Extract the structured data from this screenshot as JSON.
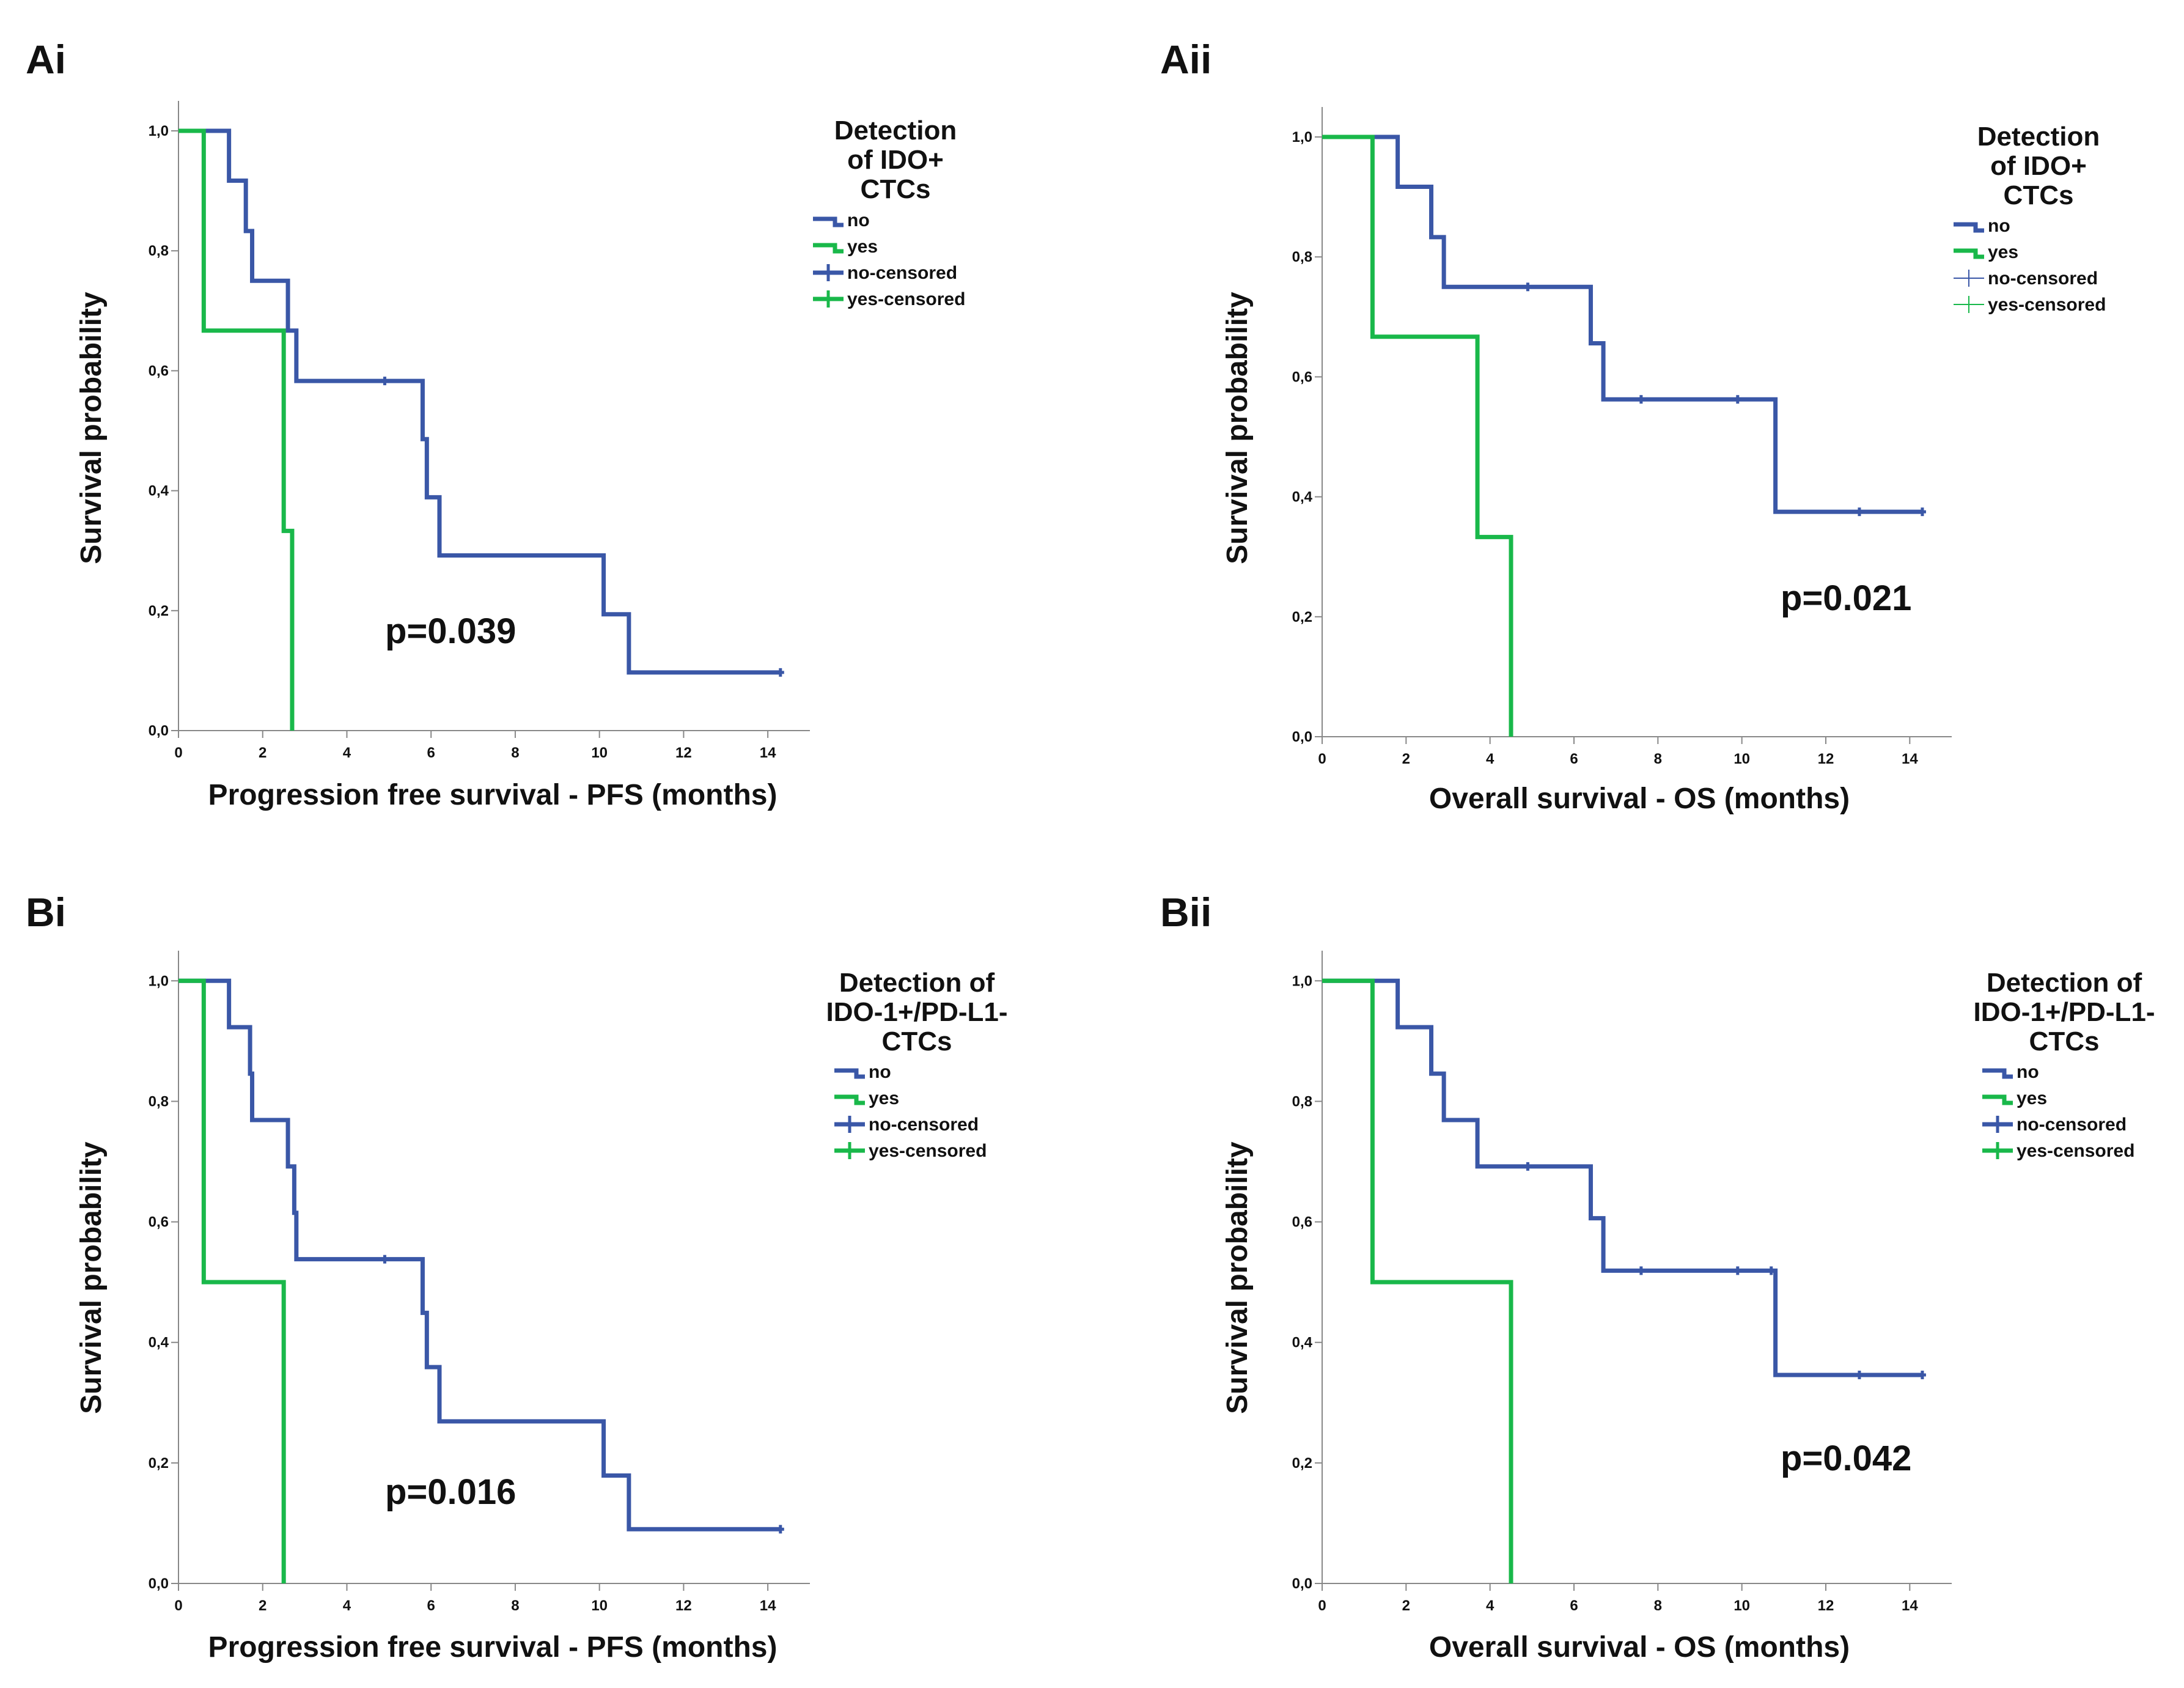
{
  "colors": {
    "no": "#3a57a7",
    "yes": "#19b84a",
    "axis": "#888888",
    "text": "#111111"
  },
  "chart_data": [
    {
      "type": "line",
      "subtype": "kaplan-meier",
      "panel_label": "Ai",
      "xlabel": "Progression free survival - PFS (months)",
      "ylabel": "Survival probability",
      "xlim": [
        0,
        15
      ],
      "ylim": [
        0,
        1.05
      ],
      "xticks": [
        0,
        2,
        4,
        6,
        8,
        10,
        12,
        14
      ],
      "yticks": [
        0,
        0.2,
        0.4,
        0.6,
        0.8,
        1.0
      ],
      "ytick_labels": [
        "0,0",
        "0,2",
        "0,4",
        "0,6",
        "0,8",
        "1,0"
      ],
      "legend_title": [
        "Detection",
        "of IDO+",
        "CTCs"
      ],
      "legend_style": "thick",
      "legend": [
        "no",
        "yes",
        "no-censored",
        "yes-censored"
      ],
      "pvalue": "p=0.039",
      "series": [
        {
          "name": "no",
          "color_key": "no",
          "x": [
            0,
            1.2,
            1.6,
            1.75,
            2.6,
            2.8,
            5.8,
            5.9,
            6.2,
            10.1,
            10.7,
            14.3
          ],
          "y": [
            1.0,
            0.917,
            0.833,
            0.75,
            0.667,
            0.583,
            0.486,
            0.389,
            0.292,
            0.194,
            0.097,
            0.097
          ],
          "censored": [
            [
              4.9,
              0.583
            ],
            [
              14.3,
              0.097
            ]
          ]
        },
        {
          "name": "yes",
          "color_key": "yes",
          "x": [
            0,
            0.6,
            2.5,
            2.7
          ],
          "y": [
            1.0,
            0.667,
            0.333,
            0.0
          ],
          "censored": []
        }
      ]
    },
    {
      "type": "line",
      "subtype": "kaplan-meier",
      "panel_label": "Aii",
      "xlabel": "Overall survival - OS (months)",
      "ylabel": "Survival probability",
      "xlim": [
        0,
        15
      ],
      "ylim": [
        0,
        1.05
      ],
      "xticks": [
        0,
        2,
        4,
        6,
        8,
        10,
        12,
        14
      ],
      "yticks": [
        0,
        0.2,
        0.4,
        0.6,
        0.8,
        1.0
      ],
      "ytick_labels": [
        "0,0",
        "0,2",
        "0,4",
        "0,6",
        "0,8",
        "1,0"
      ],
      "legend_title": [
        "Detection",
        "of IDO+",
        "CTCs"
      ],
      "legend_style": "thin",
      "legend": [
        "no",
        "yes",
        "no-censored",
        "yes-censored"
      ],
      "pvalue": "p=0.021",
      "series": [
        {
          "name": "no",
          "color_key": "no",
          "x": [
            0,
            1.8,
            2.6,
            2.9,
            6.4,
            6.7,
            10.8,
            14.3
          ],
          "y": [
            1.0,
            0.917,
            0.833,
            0.75,
            0.656,
            0.5625,
            0.375,
            0.375
          ],
          "censored": [
            [
              4.9,
              0.75
            ],
            [
              7.6,
              0.5625
            ],
            [
              9.9,
              0.5625
            ],
            [
              12.8,
              0.375
            ],
            [
              14.3,
              0.375
            ]
          ]
        },
        {
          "name": "yes",
          "color_key": "yes",
          "x": [
            0,
            1.2,
            3.7,
            4.5
          ],
          "y": [
            1.0,
            0.667,
            0.333,
            0.0
          ],
          "censored": []
        }
      ]
    },
    {
      "type": "line",
      "subtype": "kaplan-meier",
      "panel_label": "Bi",
      "xlabel": "Progression free survival - PFS (months)",
      "ylabel": "Survival probability",
      "xlim": [
        0,
        15
      ],
      "ylim": [
        0,
        1.05
      ],
      "xticks": [
        0,
        2,
        4,
        6,
        8,
        10,
        12,
        14
      ],
      "yticks": [
        0,
        0.2,
        0.4,
        0.6,
        0.8,
        1.0
      ],
      "ytick_labels": [
        "0,0",
        "0,2",
        "0,4",
        "0,6",
        "0,8",
        "1,0"
      ],
      "legend_title": [
        "Detection of",
        "IDO-1+/PD-L1-",
        "CTCs"
      ],
      "legend_style": "thick",
      "legend": [
        "no",
        "yes",
        "no-censored",
        "yes-censored"
      ],
      "pvalue": "p=0.016",
      "series": [
        {
          "name": "no",
          "color_key": "no",
          "x": [
            0,
            1.2,
            1.7,
            1.75,
            2.6,
            2.75,
            2.8,
            5.8,
            5.9,
            6.2,
            10.1,
            10.7,
            14.3
          ],
          "y": [
            1.0,
            0.923,
            0.846,
            0.769,
            0.692,
            0.615,
            0.538,
            0.449,
            0.359,
            0.269,
            0.179,
            0.09,
            0.09
          ],
          "censored": [
            [
              4.9,
              0.538
            ],
            [
              14.3,
              0.09
            ]
          ]
        },
        {
          "name": "yes",
          "color_key": "yes",
          "x": [
            0,
            0.6,
            2.5
          ],
          "y": [
            1.0,
            0.5,
            0.0
          ],
          "censored": []
        }
      ]
    },
    {
      "type": "line",
      "subtype": "kaplan-meier",
      "panel_label": "Bii",
      "xlabel": "Overall survival - OS (months)",
      "ylabel": "Survival probability",
      "xlim": [
        0,
        15
      ],
      "ylim": [
        0,
        1.05
      ],
      "xticks": [
        0,
        2,
        4,
        6,
        8,
        10,
        12,
        14
      ],
      "yticks": [
        0,
        0.2,
        0.4,
        0.6,
        0.8,
        1.0
      ],
      "ytick_labels": [
        "0,0",
        "0,2",
        "0,4",
        "0,6",
        "0,8",
        "1,0"
      ],
      "legend_title": [
        "Detection of",
        "IDO-1+/PD-L1-",
        "CTCs"
      ],
      "legend_style": "thick",
      "legend": [
        "no",
        "yes",
        "no-censored",
        "yes-censored"
      ],
      "pvalue": "p=0.042",
      "series": [
        {
          "name": "no",
          "color_key": "no",
          "x": [
            0,
            1.8,
            2.6,
            2.9,
            3.7,
            6.4,
            6.7,
            10.8,
            14.3
          ],
          "y": [
            1.0,
            0.923,
            0.846,
            0.769,
            0.692,
            0.606,
            0.519,
            0.346,
            0.346
          ],
          "censored": [
            [
              4.9,
              0.692
            ],
            [
              7.6,
              0.519
            ],
            [
              9.9,
              0.519
            ],
            [
              10.7,
              0.519
            ],
            [
              12.8,
              0.346
            ],
            [
              14.3,
              0.346
            ]
          ]
        },
        {
          "name": "yes",
          "color_key": "yes",
          "x": [
            0,
            1.2,
            4.5
          ],
          "y": [
            1.0,
            0.5,
            0.0
          ],
          "censored": []
        }
      ]
    }
  ]
}
